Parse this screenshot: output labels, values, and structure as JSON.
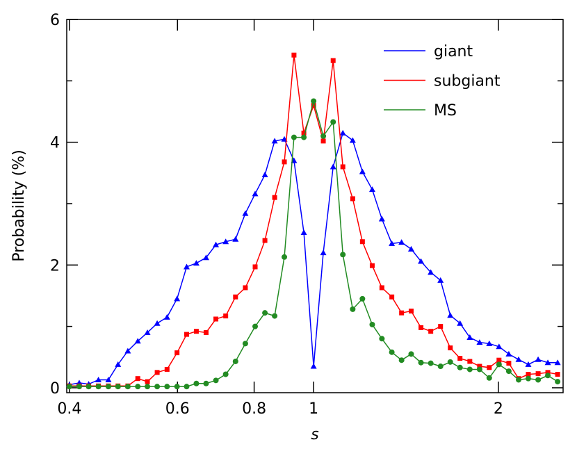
{
  "chart_data": {
    "type": "line",
    "xlabel": "s",
    "ylabel": "Probability (%)",
    "xscale": "log",
    "xlim": [
      0.396,
      2.55
    ],
    "ylim": [
      -0.08,
      6
    ],
    "xticks": [
      0.4,
      0.6,
      0.8,
      1,
      2
    ],
    "yticks": [
      0,
      2,
      4,
      6
    ],
    "yminorticks": [
      1,
      3,
      5
    ],
    "legend": "upper right",
    "x": [
      0.4,
      0.415,
      0.43,
      0.446,
      0.463,
      0.48,
      0.498,
      0.517,
      0.536,
      0.556,
      0.577,
      0.599,
      0.621,
      0.644,
      0.668,
      0.693,
      0.719,
      0.746,
      0.774,
      0.803,
      0.833,
      0.864,
      0.896,
      0.929,
      0.964,
      1,
      1.037,
      1.076,
      1.116,
      1.158,
      1.201,
      1.246,
      1.292,
      1.341,
      1.391,
      1.442,
      1.496,
      1.552,
      1.61,
      1.67,
      1.732,
      1.797,
      1.864,
      1.933,
      2.005,
      2.08,
      2.158,
      2.238,
      2.322,
      2.408,
      2.498
    ],
    "series": [
      {
        "name": "giant",
        "color": "#0000ff",
        "marker": "triangle",
        "values": [
          0.05,
          0.08,
          0.06,
          0.13,
          0.13,
          0.38,
          0.6,
          0.76,
          0.9,
          1.05,
          1.15,
          1.45,
          1.97,
          2.03,
          2.12,
          2.33,
          2.38,
          2.42,
          2.84,
          3.16,
          3.47,
          4.02,
          4.05,
          3.7,
          2.53,
          0.35,
          2.2,
          3.6,
          4.15,
          4.03,
          3.52,
          3.23,
          2.75,
          2.35,
          2.37,
          2.26,
          2.06,
          1.88,
          1.75,
          1.18,
          1.05,
          0.82,
          0.74,
          0.72,
          0.67,
          0.55,
          0.46,
          0.38,
          0.46,
          0.41,
          0.41
        ]
      },
      {
        "name": "subgiant",
        "color": "#ff0000",
        "marker": "square",
        "values": [
          0.03,
          0.03,
          0.03,
          0.03,
          0.03,
          0.03,
          0.03,
          0.15,
          0.1,
          0.25,
          0.3,
          0.57,
          0.87,
          0.92,
          0.9,
          1.12,
          1.17,
          1.48,
          1.63,
          1.97,
          2.4,
          3.1,
          3.68,
          5.42,
          4.15,
          4.6,
          4.02,
          5.33,
          3.6,
          3.08,
          2.38,
          1.99,
          1.63,
          1.48,
          1.22,
          1.25,
          0.98,
          0.92,
          1.0,
          0.65,
          0.48,
          0.43,
          0.35,
          0.33,
          0.45,
          0.4,
          0.15,
          0.22,
          0.23,
          0.25,
          0.22
        ]
      },
      {
        "name": "MS",
        "color": "#228b22",
        "marker": "circle",
        "values": [
          0.02,
          0.02,
          0.02,
          0.02,
          0.02,
          0.02,
          0.02,
          0.02,
          0.02,
          0.02,
          0.02,
          0.02,
          0.02,
          0.07,
          0.07,
          0.12,
          0.22,
          0.43,
          0.72,
          1.0,
          1.22,
          1.17,
          2.13,
          4.08,
          4.08,
          4.67,
          4.1,
          4.33,
          2.17,
          1.28,
          1.45,
          1.03,
          0.8,
          0.58,
          0.45,
          0.55,
          0.41,
          0.4,
          0.35,
          0.42,
          0.33,
          0.3,
          0.3,
          0.16,
          0.38,
          0.27,
          0.13,
          0.15,
          0.13,
          0.2,
          0.1
        ]
      }
    ]
  }
}
